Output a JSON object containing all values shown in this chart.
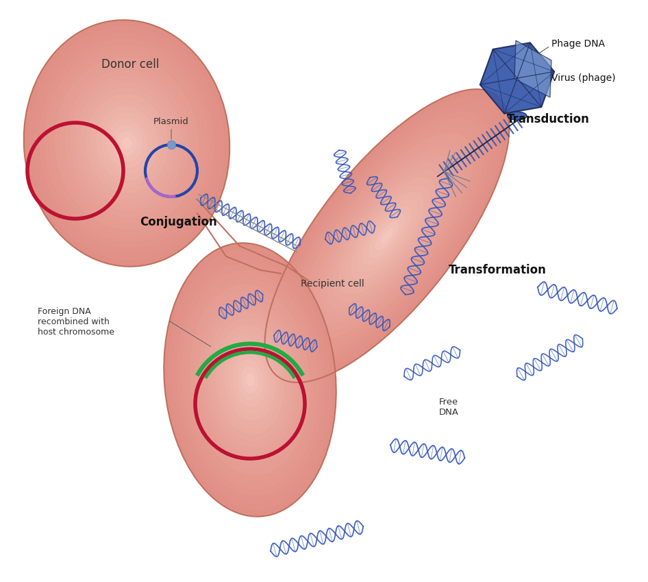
{
  "bg_color": "#ffffff",
  "cell_fill_outer": "#e8a898",
  "cell_fill_inner": "#f5d0c8",
  "cell_edge_color": "#c07060",
  "chromosome_red": "#bb1133",
  "chromosome_green": "#22aa44",
  "plasmid_blue": "#2244aa",
  "plasmid_purple": "#aa66cc",
  "dna_color": "#3355bb",
  "phage_dark": "#1a2a5a",
  "phage_mid": "#3355aa",
  "phage_light": "#7799cc",
  "conjugation_label": "Conjugation",
  "transduction_label": "Transduction",
  "transformation_label": "Transformation",
  "donor_label": "Donor cell",
  "recipient_label": "Recipient cell",
  "plasmid_label": "Plasmid",
  "phage_dna_label": "Phage DNA",
  "virus_label": "Virus (phage)",
  "foreign_dna_label": "Foreign DNA\nrecombined with\nhost chromosome",
  "free_dna_label": "Free\nDNA",
  "label_color": "#333333",
  "bold_label_color": "#111111"
}
